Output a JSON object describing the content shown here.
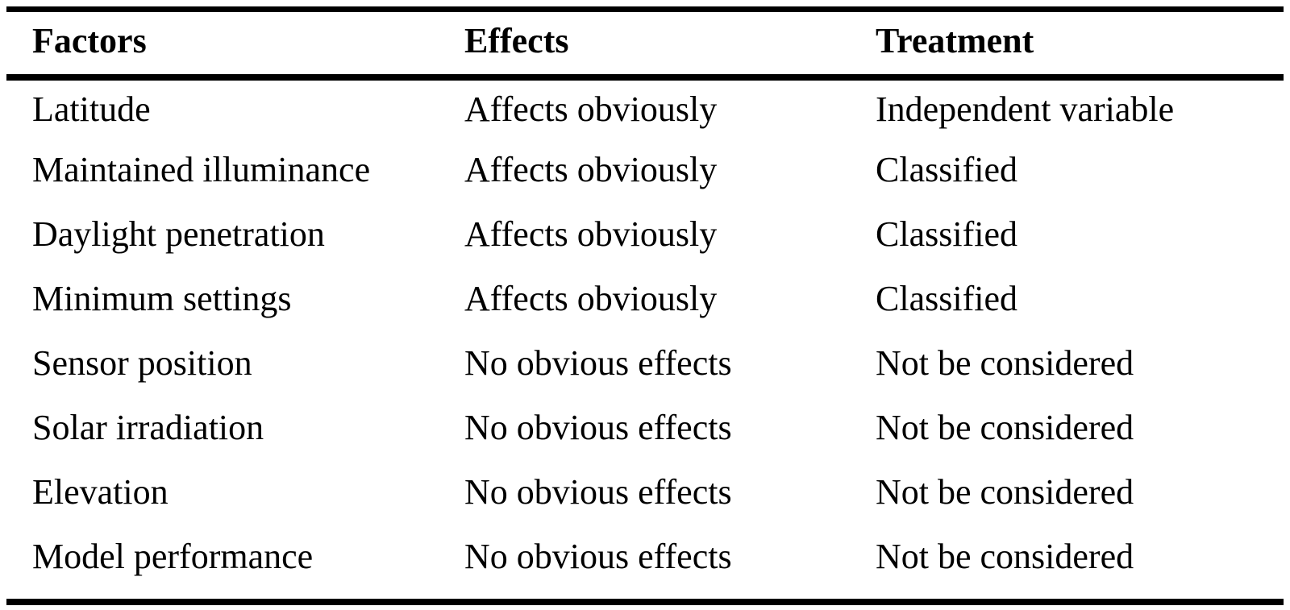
{
  "table": {
    "headers": [
      "Factors",
      "Effects",
      "Treatment"
    ],
    "rows": [
      [
        "Latitude",
        "Affects obviously",
        "Independent variable"
      ],
      [
        "Maintained illuminance",
        "Affects obviously",
        "Classified"
      ],
      [
        "Daylight penetration",
        "Affects obviously",
        "Classified"
      ],
      [
        "Minimum settings",
        "Affects obviously",
        "Classified"
      ],
      [
        "Sensor position",
        "No obvious effects",
        "Not be considered"
      ],
      [
        "Solar irradiation",
        "No obvious effects",
        "Not be considered"
      ],
      [
        "Elevation",
        "No obvious effects",
        "Not be considered"
      ],
      [
        "Model performance",
        "No obvious effects",
        "Not be considered"
      ]
    ]
  },
  "colors": {
    "text": "#000000",
    "background": "#ffffff",
    "rules": "#000000"
  }
}
